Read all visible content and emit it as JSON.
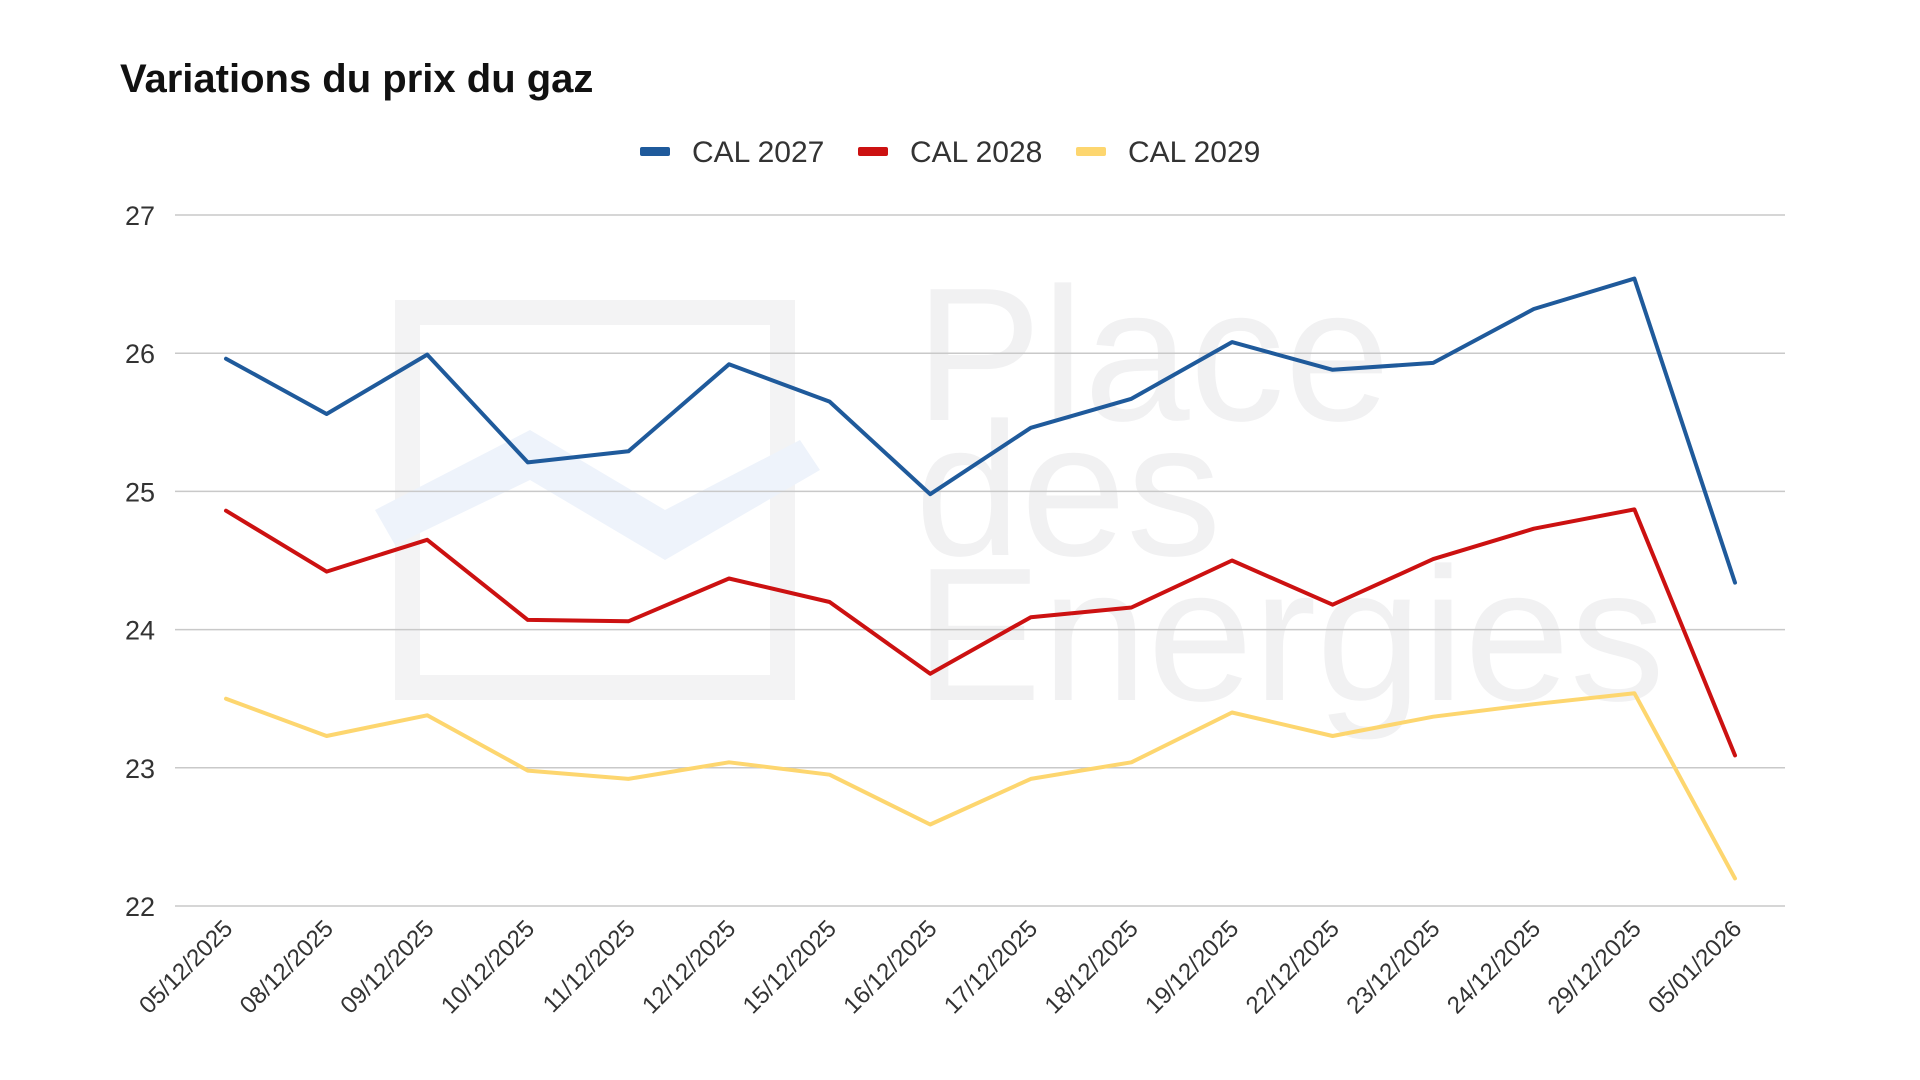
{
  "chart_data": {
    "type": "line",
    "title": "Variations du prix du gaz",
    "xlabel": "",
    "ylabel": "",
    "ylim": [
      22,
      27
    ],
    "y_ticks": [
      22,
      23,
      24,
      25,
      26,
      27
    ],
    "grid": true,
    "legend_position": "top-center",
    "categories": [
      "05/12/2025",
      "08/12/2025",
      "09/12/2025",
      "10/12/2025",
      "11/12/2025",
      "12/12/2025",
      "15/12/2025",
      "16/12/2025",
      "17/12/2025",
      "18/12/2025",
      "19/12/2025",
      "22/12/2025",
      "23/12/2025",
      "24/12/2025",
      "29/12/2025",
      "05/01/2026"
    ],
    "series": [
      {
        "name": "CAL 2027",
        "color": "#1f5a9b",
        "values": [
          25.96,
          25.56,
          25.99,
          25.21,
          25.29,
          25.92,
          25.65,
          24.98,
          25.46,
          25.67,
          26.08,
          25.88,
          25.93,
          26.32,
          26.54,
          24.34
        ]
      },
      {
        "name": "CAL 2028",
        "color": "#cc1111",
        "values": [
          24.86,
          24.42,
          24.65,
          24.07,
          24.06,
          24.37,
          24.2,
          23.68,
          24.09,
          24.16,
          24.5,
          24.18,
          24.51,
          24.73,
          24.87,
          23.09
        ]
      },
      {
        "name": "CAL 2029",
        "color": "#fdd66f",
        "values": [
          23.5,
          23.23,
          23.38,
          22.98,
          22.92,
          23.04,
          22.95,
          22.59,
          22.92,
          23.04,
          23.4,
          23.23,
          23.37,
          23.46,
          23.54,
          22.2
        ]
      }
    ],
    "watermark": {
      "lines": [
        "Place",
        "des",
        "Energies"
      ]
    }
  },
  "colors": {
    "grid": "#c9c9c9",
    "axis_text": "#333333",
    "watermark": "#f1f1f2"
  }
}
